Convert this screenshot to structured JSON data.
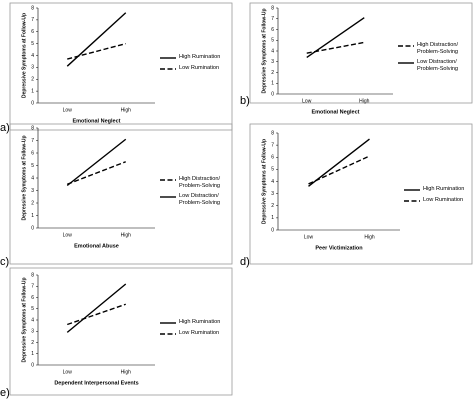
{
  "chart_data": [
    {
      "type": "line",
      "panel_label": "a)",
      "x_label": "Emotional Neglect",
      "y_label": "Depressive Symptoms at Follow-Up",
      "categories": [
        "Low",
        "High"
      ],
      "ylim": [
        0,
        8
      ],
      "yticks": [
        0,
        1,
        2,
        3,
        4,
        5,
        6,
        7,
        8
      ],
      "series": [
        {
          "name": "High Rumination",
          "color": "#000000",
          "line_style": "solid",
          "values": [
            3.1,
            7.6
          ]
        },
        {
          "name": "Low Rumination",
          "color": "#000000",
          "line_style": "dashed",
          "values": [
            3.7,
            5.0
          ]
        }
      ]
    },
    {
      "type": "line",
      "panel_label": "b)",
      "x_label": "Emotional Neglect",
      "y_label": "Depressive Symptoms at Follow-Up",
      "categories": [
        "Low",
        "High"
      ],
      "ylim": [
        0,
        8
      ],
      "yticks": [
        0,
        1,
        2,
        3,
        4,
        5,
        6,
        7,
        8
      ],
      "series": [
        {
          "name": "High Distraction/ Problem-Solving",
          "color": "#000000",
          "line_style": "dashed",
          "values": [
            3.8,
            4.8
          ]
        },
        {
          "name": "Low Distraction/ Problem-Solving",
          "color": "#000000",
          "line_style": "solid",
          "values": [
            3.4,
            7.1
          ]
        }
      ]
    },
    {
      "type": "line",
      "panel_label": "c)",
      "x_label": "Emotional Abuse",
      "y_label": "Depressive Symptoms at Follow-Up",
      "categories": [
        "Low",
        "High"
      ],
      "ylim": [
        0,
        8
      ],
      "yticks": [
        0,
        1,
        2,
        3,
        4,
        5,
        6,
        7,
        8
      ],
      "series": [
        {
          "name": "High Distraction/ Problem-Solving",
          "color": "#000000",
          "line_style": "dashed",
          "values": [
            3.5,
            5.3
          ]
        },
        {
          "name": "Low Distraction/ Problem-Solving",
          "color": "#000000",
          "line_style": "solid",
          "values": [
            3.4,
            7.1
          ]
        }
      ]
    },
    {
      "type": "line",
      "panel_label": "d)",
      "x_label": "Peer Victimization",
      "y_label": "Depressive Symptoms at Follow-Up",
      "categories": [
        "Low",
        "High"
      ],
      "ylim": [
        0,
        8
      ],
      "yticks": [
        0,
        1,
        2,
        3,
        4,
        5,
        6,
        7,
        8
      ],
      "series": [
        {
          "name": "High Rumination",
          "color": "#000000",
          "line_style": "solid",
          "values": [
            3.6,
            7.5
          ]
        },
        {
          "name": "Low Rumination",
          "color": "#000000",
          "line_style": "dashed",
          "values": [
            3.8,
            6.1
          ]
        }
      ]
    },
    {
      "type": "line",
      "panel_label": "e)",
      "x_label": "Dependent Interpersonal Events",
      "y_label": "Depressive Symptoms at Follow-Up",
      "categories": [
        "Low",
        "High"
      ],
      "ylim": [
        0,
        8
      ],
      "yticks": [
        0,
        1,
        2,
        3,
        4,
        5,
        6,
        7,
        8
      ],
      "series": [
        {
          "name": "High Rumination",
          "color": "#000000",
          "line_style": "solid",
          "values": [
            2.9,
            7.2
          ]
        },
        {
          "name": "Low Rumination",
          "color": "#000000",
          "line_style": "dashed",
          "values": [
            3.6,
            5.4
          ]
        }
      ]
    }
  ]
}
